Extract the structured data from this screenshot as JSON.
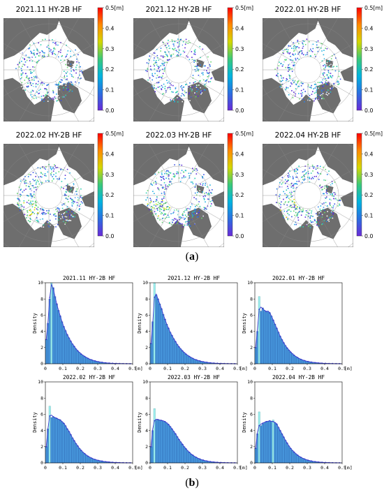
{
  "figure": {
    "panel_a_label": "a",
    "panel_b_label": "b"
  },
  "maps": {
    "colorbar_ticks": [
      "0.5[m]",
      "0.4",
      "0.3",
      "0.2",
      "0.1",
      "0.0"
    ],
    "colorbar_stops": [
      "#ff0000",
      "#ff8a00",
      "#d4d800",
      "#3ac97a",
      "#00b4e0",
      "#2b6fe0",
      "#6a2bd8"
    ],
    "panels": [
      {
        "title": "2021.11 HY-2B HF"
      },
      {
        "title": "2021.12 HY-2B HF"
      },
      {
        "title": "2022.01  HY-2B HF"
      },
      {
        "title": "2022.02 HY-2B HF"
      },
      {
        "title": "2022.03 HY-2B HF"
      },
      {
        "title": "2022.04 HY-2B HF"
      }
    ]
  },
  "chart_data": [
    {
      "type": "bar",
      "title": "2021.11 HY-2B HF",
      "ylabel": "Density",
      "xlim": [
        0,
        0.5
      ],
      "ylim": [
        0,
        10
      ],
      "x_ticks": [
        "0",
        "0.1",
        "0.2",
        "0.3",
        "0.4",
        "0.5"
      ],
      "x_unit": "[m]",
      "y_ticks": [
        "0",
        "2",
        "4",
        "6",
        "8",
        "10"
      ],
      "bin_width": 0.01,
      "highlight_bins": [
        3
      ],
      "values": [
        3.0,
        5.0,
        8.0,
        10.2,
        9.4,
        8.3,
        7.4,
        6.6,
        5.9,
        5.2,
        4.6,
        4.1,
        3.6,
        3.2,
        2.8,
        2.45,
        2.15,
        1.85,
        1.6,
        1.4,
        1.2,
        1.05,
        0.9,
        0.78,
        0.66,
        0.56,
        0.48,
        0.41,
        0.35,
        0.3,
        0.25,
        0.21,
        0.18,
        0.15,
        0.12,
        0.1,
        0.085,
        0.07,
        0.06,
        0.05,
        0.04,
        0.035,
        0.03,
        0.025,
        0.02,
        0.015,
        0.01,
        0.01,
        0.005,
        0.005
      ],
      "curve": [
        3.0,
        5.2,
        8.2,
        9.8,
        9.3,
        8.3,
        7.4,
        6.6,
        5.9,
        5.2,
        4.6,
        4.1,
        3.6,
        3.2,
        2.8,
        2.45,
        2.15,
        1.85,
        1.6,
        1.4,
        1.2,
        1.05,
        0.9,
        0.78,
        0.66,
        0.56,
        0.48,
        0.41,
        0.35,
        0.3,
        0.25,
        0.21,
        0.18,
        0.15,
        0.12,
        0.1,
        0.085,
        0.07,
        0.06,
        0.05,
        0.04,
        0.035,
        0.03,
        0.025,
        0.02,
        0.015,
        0.01,
        0.01,
        0.005,
        0.005
      ]
    },
    {
      "type": "bar",
      "title": "2021.12 HY-2B HF",
      "ylabel": "Density",
      "xlim": [
        0,
        0.5
      ],
      "ylim": [
        0,
        10
      ],
      "x_ticks": [
        "0",
        "0.1",
        "0.2",
        "0.3",
        "0.4",
        "0.5"
      ],
      "x_unit": "[m]",
      "y_ticks": [
        "0",
        "2",
        "4",
        "6",
        "8",
        "10"
      ],
      "bin_width": 0.01,
      "highlight_bins": [
        2
      ],
      "values": [
        2.5,
        5.2,
        10.0,
        8.5,
        8.0,
        7.4,
        6.8,
        6.1,
        5.5,
        4.9,
        4.4,
        3.9,
        3.5,
        3.1,
        2.75,
        2.4,
        2.1,
        1.85,
        1.6,
        1.4,
        1.2,
        1.05,
        0.9,
        0.78,
        0.66,
        0.56,
        0.48,
        0.41,
        0.35,
        0.3,
        0.25,
        0.21,
        0.18,
        0.15,
        0.12,
        0.1,
        0.085,
        0.07,
        0.06,
        0.05,
        0.04,
        0.035,
        0.03,
        0.025,
        0.02,
        0.015,
        0.01,
        0.01,
        0.005,
        0.005
      ],
      "curve": [
        2.5,
        5.0,
        8.2,
        8.6,
        8.0,
        7.4,
        6.8,
        6.1,
        5.5,
        4.9,
        4.4,
        3.9,
        3.5,
        3.1,
        2.75,
        2.4,
        2.1,
        1.85,
        1.6,
        1.4,
        1.2,
        1.05,
        0.9,
        0.78,
        0.66,
        0.56,
        0.48,
        0.41,
        0.35,
        0.3,
        0.25,
        0.21,
        0.18,
        0.15,
        0.12,
        0.1,
        0.085,
        0.07,
        0.06,
        0.05,
        0.04,
        0.035,
        0.03,
        0.025,
        0.02,
        0.015,
        0.01,
        0.01,
        0.005,
        0.005
      ]
    },
    {
      "type": "bar",
      "title": "2022.01   HY-2B HF",
      "ylabel": "Density",
      "xlim": [
        0,
        0.5
      ],
      "ylim": [
        0,
        10
      ],
      "x_ticks": [
        "0",
        "0.1",
        "0.2",
        "0.3",
        "0.4",
        "0.5"
      ],
      "x_unit": "[m]",
      "y_ticks": [
        "0",
        "2",
        "4",
        "6",
        "8",
        "10"
      ],
      "bin_width": 0.01,
      "highlight_bins": [
        2
      ],
      "values": [
        2.0,
        4.0,
        8.3,
        6.5,
        6.9,
        6.6,
        6.4,
        6.5,
        6.3,
        5.9,
        5.4,
        4.9,
        4.4,
        3.9,
        3.4,
        3.0,
        2.6,
        2.25,
        1.95,
        1.7,
        1.45,
        1.25,
        1.05,
        0.9,
        0.76,
        0.64,
        0.54,
        0.46,
        0.39,
        0.33,
        0.28,
        0.24,
        0.2,
        0.17,
        0.14,
        0.12,
        0.1,
        0.085,
        0.07,
        0.06,
        0.05,
        0.04,
        0.035,
        0.03,
        0.025,
        0.02,
        0.015,
        0.01,
        0.01,
        0.005
      ],
      "curve": [
        2.0,
        4.3,
        6.7,
        7.0,
        6.8,
        6.6,
        6.45,
        6.5,
        6.3,
        5.9,
        5.4,
        4.9,
        4.4,
        3.9,
        3.4,
        3.0,
        2.6,
        2.25,
        1.95,
        1.7,
        1.45,
        1.25,
        1.05,
        0.9,
        0.76,
        0.64,
        0.54,
        0.46,
        0.39,
        0.33,
        0.28,
        0.24,
        0.2,
        0.17,
        0.14,
        0.12,
        0.1,
        0.085,
        0.07,
        0.06,
        0.05,
        0.04,
        0.035,
        0.03,
        0.025,
        0.02,
        0.015,
        0.01,
        0.01,
        0.005
      ]
    },
    {
      "type": "bar",
      "title": "2022.02 HY-2B HF",
      "ylabel": "Density",
      "xlim": [
        0,
        0.5
      ],
      "ylim": [
        0,
        10
      ],
      "x_ticks": [
        "0",
        "0.1",
        "0.2",
        "0.3",
        "0.4",
        "0.5"
      ],
      "x_unit": "[m]",
      "y_ticks": [
        "0",
        "2",
        "4",
        "6",
        "8",
        "10"
      ],
      "bin_width": 0.01,
      "highlight_bins": [
        2
      ],
      "values": [
        2.0,
        4.2,
        7.0,
        5.6,
        5.7,
        5.6,
        5.5,
        5.4,
        5.3,
        5.1,
        4.9,
        4.6,
        4.2,
        3.9,
        3.5,
        3.1,
        2.75,
        2.4,
        2.1,
        1.8,
        1.55,
        1.33,
        1.14,
        0.97,
        0.82,
        0.7,
        0.59,
        0.5,
        0.42,
        0.36,
        0.3,
        0.26,
        0.22,
        0.18,
        0.15,
        0.13,
        0.11,
        0.09,
        0.075,
        0.06,
        0.05,
        0.042,
        0.035,
        0.03,
        0.025,
        0.02,
        0.015,
        0.01,
        0.01,
        0.005
      ],
      "curve": [
        2.0,
        4.3,
        5.8,
        5.9,
        5.7,
        5.6,
        5.5,
        5.4,
        5.3,
        5.1,
        4.9,
        4.6,
        4.2,
        3.9,
        3.5,
        3.1,
        2.75,
        2.4,
        2.1,
        1.8,
        1.55,
        1.33,
        1.14,
        0.97,
        0.82,
        0.7,
        0.59,
        0.5,
        0.42,
        0.36,
        0.3,
        0.26,
        0.22,
        0.18,
        0.15,
        0.13,
        0.11,
        0.09,
        0.075,
        0.06,
        0.05,
        0.042,
        0.035,
        0.03,
        0.025,
        0.02,
        0.015,
        0.01,
        0.01,
        0.005
      ]
    },
    {
      "type": "bar",
      "title": "2022.03 HY-2B HF",
      "ylabel": "Density",
      "xlim": [
        0,
        0.5
      ],
      "ylim": [
        0,
        10
      ],
      "x_ticks": [
        "0",
        "0.1",
        "0.2",
        "0.3",
        "0.4",
        "0.5"
      ],
      "x_unit": "[m]",
      "y_ticks": [
        "0",
        "2",
        "4",
        "6",
        "8",
        "10"
      ],
      "bin_width": 0.01,
      "highlight_bins": [
        2
      ],
      "values": [
        2.0,
        4.0,
        6.7,
        5.3,
        5.3,
        5.3,
        5.25,
        5.2,
        5.1,
        4.95,
        4.75,
        4.5,
        4.2,
        3.9,
        3.6,
        3.25,
        2.9,
        2.6,
        2.3,
        2.0,
        1.75,
        1.5,
        1.3,
        1.1,
        0.95,
        0.8,
        0.68,
        0.57,
        0.48,
        0.4,
        0.34,
        0.28,
        0.24,
        0.2,
        0.16,
        0.13,
        0.11,
        0.09,
        0.075,
        0.06,
        0.05,
        0.04,
        0.033,
        0.027,
        0.022,
        0.018,
        0.014,
        0.01,
        0.008,
        0.005
      ],
      "curve": [
        2.0,
        4.2,
        5.2,
        5.4,
        5.35,
        5.3,
        5.25,
        5.2,
        5.1,
        4.95,
        4.75,
        4.5,
        4.2,
        3.9,
        3.6,
        3.25,
        2.9,
        2.6,
        2.3,
        2.0,
        1.75,
        1.5,
        1.3,
        1.1,
        0.95,
        0.8,
        0.68,
        0.57,
        0.48,
        0.4,
        0.34,
        0.28,
        0.24,
        0.2,
        0.16,
        0.13,
        0.11,
        0.09,
        0.075,
        0.06,
        0.05,
        0.04,
        0.033,
        0.027,
        0.022,
        0.018,
        0.014,
        0.01,
        0.008,
        0.005
      ]
    },
    {
      "type": "bar",
      "title": "2022.04 HY-2B HF",
      "ylabel": "Density",
      "xlim": [
        0,
        0.5
      ],
      "ylim": [
        0,
        10
      ],
      "x_ticks": [
        "0",
        "0.1",
        "0.2",
        "0.3",
        "0.4",
        "0.5"
      ],
      "x_unit": "[m]",
      "y_ticks": [
        "0",
        "2",
        "4",
        "6",
        "8",
        "10"
      ],
      "bin_width": 0.01,
      "highlight_bins": [
        2,
        10
      ],
      "values": [
        1.8,
        3.6,
        6.3,
        4.6,
        4.8,
        5.0,
        5.1,
        5.15,
        5.2,
        5.15,
        5.3,
        5.0,
        4.8,
        4.4,
        4.0,
        3.6,
        3.2,
        2.8,
        2.45,
        2.1,
        1.8,
        1.55,
        1.33,
        1.13,
        0.96,
        0.81,
        0.68,
        0.57,
        0.48,
        0.4,
        0.33,
        0.28,
        0.23,
        0.19,
        0.16,
        0.13,
        0.11,
        0.09,
        0.075,
        0.06,
        0.05,
        0.04,
        0.033,
        0.027,
        0.022,
        0.018,
        0.014,
        0.01,
        0.008,
        0.005
      ],
      "curve": [
        1.8,
        3.8,
        4.6,
        4.8,
        4.9,
        5.0,
        5.1,
        5.15,
        5.2,
        5.15,
        5.1,
        5.0,
        4.8,
        4.4,
        4.0,
        3.6,
        3.2,
        2.8,
        2.45,
        2.1,
        1.8,
        1.55,
        1.33,
        1.13,
        0.96,
        0.81,
        0.68,
        0.57,
        0.48,
        0.4,
        0.33,
        0.28,
        0.23,
        0.19,
        0.16,
        0.13,
        0.11,
        0.09,
        0.075,
        0.06,
        0.05,
        0.04,
        0.033,
        0.027,
        0.022,
        0.018,
        0.014,
        0.01,
        0.008,
        0.005
      ]
    }
  ],
  "colors": {
    "bar_fill": "#4a9be0",
    "bar_edge": "#1f4e9a",
    "highlight_fill": "#9ff0f0",
    "curve": "#3a3ad0",
    "land": "#6e6e6e",
    "ocean": "#ffffff"
  }
}
